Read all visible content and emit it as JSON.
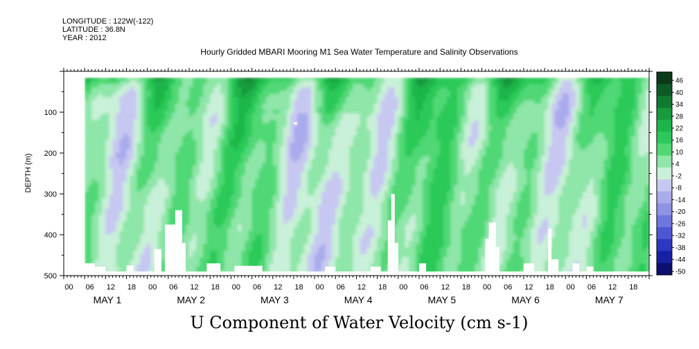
{
  "header": {
    "longitude": "LONGITUDE : 122W(-122)",
    "latitude": "LATITUDE : 36.8N",
    "year": "YEAR : 2012"
  },
  "title": "Hourly Gridded MBARI Mooring M1 Sea Water Temperature and Salinity Observations",
  "variable_label": "U Component of Water Velocity (cm s-1)",
  "chart_data": {
    "type": "heatmap",
    "title": "Hourly Gridded MBARI Mooring M1 Sea Water Temperature and Salinity Observations",
    "xlabel": "",
    "ylabel": "DEPTH (m)",
    "y_inverted": true,
    "ylim": [
      0,
      500
    ],
    "y_ticks": [
      100,
      200,
      300,
      400,
      500
    ],
    "y_tick_labels": [
      "100",
      "200",
      "300",
      "400",
      "500"
    ],
    "x_hour_ticks": [
      "00",
      "06",
      "12",
      "18",
      "00",
      "06",
      "12",
      "18",
      "00",
      "06",
      "12",
      "18",
      "00",
      "06",
      "12",
      "18",
      "00",
      "06",
      "12",
      "18",
      "00",
      "06",
      "12",
      "18",
      "00",
      "06",
      "12",
      "18"
    ],
    "x_days": [
      "MAY 1",
      "MAY 2",
      "MAY 3",
      "MAY 4",
      "MAY 5",
      "MAY 6",
      "MAY 7"
    ],
    "data_extent": {
      "time_start": "MAY 1 06",
      "depth_min_m": 15,
      "depth_max_m": 490
    },
    "colorbar": {
      "label": "U Component of Water Velocity (cm s-1)",
      "levels": [
        46,
        40,
        34,
        28,
        22,
        16,
        10,
        4,
        -2,
        -8,
        -14,
        -20,
        -26,
        -32,
        -38,
        -44,
        -50
      ],
      "level_labels": [
        "46",
        "40",
        "34",
        "28",
        "22",
        "16",
        "10",
        "4",
        "-2",
        "-8",
        "-14",
        "-20",
        "-26",
        "-32",
        "-38",
        "-44",
        "-50"
      ],
      "colors_top_to_bottom": [
        "#0a3a1a",
        "#0d5a26",
        "#117a31",
        "#169a3c",
        "#1cb54a",
        "#2bc959",
        "#4fd874",
        "#8ee6a8",
        "#c9f0d8",
        "#c7c8f2",
        "#a9abec",
        "#8f93e6",
        "#6f76df",
        "#4d57d3",
        "#2c37c2",
        "#1622a3",
        "#0a0f70"
      ]
    },
    "series_note": "positive (green) and negative (blue) bands alternating with time; strongest positive near surface"
  }
}
